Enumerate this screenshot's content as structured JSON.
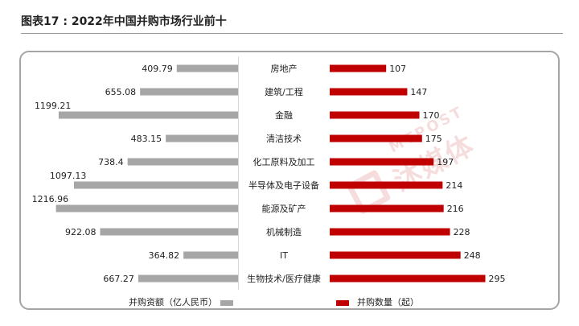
{
  "page": {
    "title": "图表17 : 2022年中国并购市场行业前十"
  },
  "watermark": {
    "brand_text": "沐媒体",
    "brand_sub": "MTPOST"
  },
  "legend": {
    "left_label": "并购资额（亿人民币）",
    "right_label": "并购数量（起）"
  },
  "colors": {
    "amount_bar": "#a6a6a6",
    "count_bar": "#c00000"
  },
  "chart_data": {
    "type": "bar",
    "orientation": "horizontal-butterfly",
    "categories": [
      "房地产",
      "建筑/工程",
      "金融",
      "清洁技术",
      "化工原料及加工",
      "半导体及电子设备",
      "能源及矿产",
      "机械制造",
      "IT",
      "生物技术/医疗健康"
    ],
    "series": [
      {
        "name": "并购资额（亿人民币）",
        "side": "left",
        "values": [
          409.79,
          655.08,
          1199.21,
          483.15,
          738.4,
          1097.13,
          1216.96,
          922.08,
          364.82,
          667.27
        ],
        "labels": [
          "409.79",
          "655.08",
          "1199.21",
          "483.15",
          "738.4",
          "1097.13",
          "1216.96",
          "922.08",
          "364.82",
          "667.27"
        ]
      },
      {
        "name": "并购数量（起）",
        "side": "right",
        "values": [
          107,
          147,
          170,
          175,
          197,
          214,
          216,
          228,
          248,
          295
        ],
        "labels": [
          "107",
          "147",
          "170",
          "175",
          "197",
          "214",
          "216",
          "228",
          "248",
          "295"
        ]
      }
    ],
    "legend_position": "bottom",
    "grid": false
  }
}
